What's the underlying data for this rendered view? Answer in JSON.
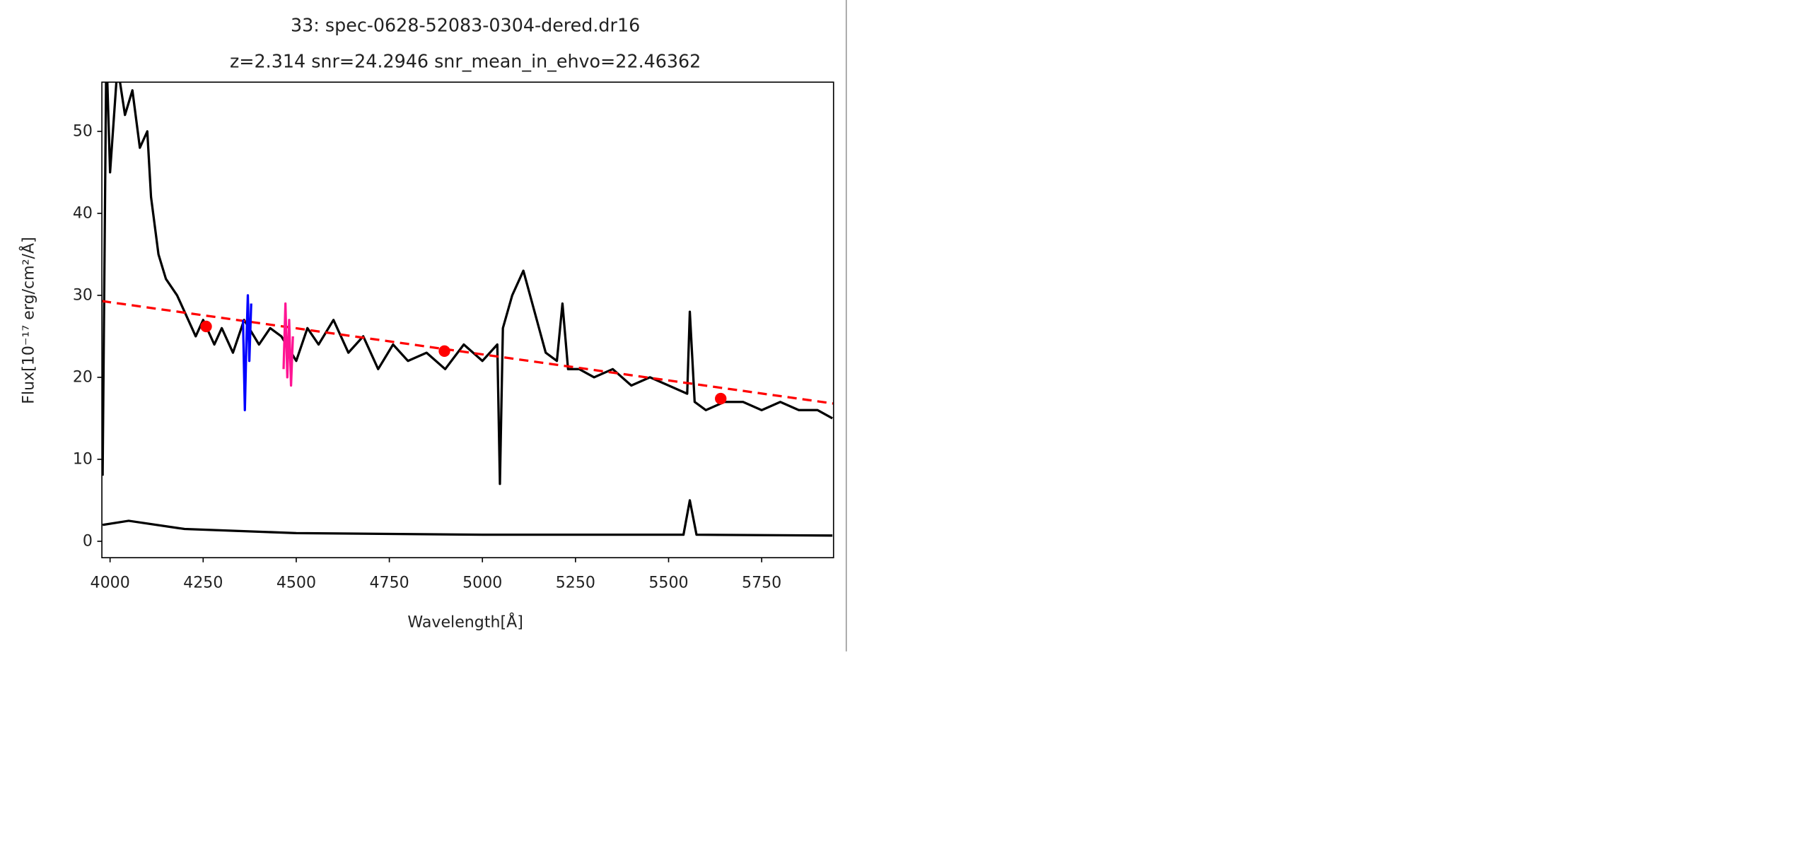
{
  "chart_data": {
    "type": "line",
    "title": "33: spec-0628-52083-0304-dered.dr16",
    "subtitle": "z=2.314 snr=24.2946 snr_mean_in_ehvo=22.46362",
    "xlabel": "Wavelength[Å]",
    "ylabel": "Flux[10⁻¹⁷ erg/cm²/Å]",
    "xlim": [
      3978,
      5943
    ],
    "ylim": [
      -2,
      56
    ],
    "xticks": [
      4000,
      4250,
      4500,
      4750,
      5000,
      5250,
      5500,
      5750
    ],
    "yticks": [
      0,
      10,
      20,
      30,
      40,
      50
    ],
    "series": [
      {
        "color": "#000000",
        "style": "solid",
        "x": [
          3980,
          3990,
          4000,
          4020,
          4040,
          4060,
          4080,
          4100,
          4110,
          4130,
          4150,
          4180,
          4200,
          4230,
          4250,
          4280,
          4300,
          4330,
          4360,
          4400,
          4430,
          4460,
          4500,
          4530,
          4560,
          4600,
          4640,
          4680,
          4720,
          4760,
          4800,
          4850,
          4900,
          4950,
          5000,
          5040,
          5047,
          5055,
          5080,
          5110,
          5140,
          5170,
          5200,
          5215,
          5230,
          5260,
          5300,
          5350,
          5400,
          5450,
          5500,
          5550,
          5557,
          5570,
          5600,
          5650,
          5700,
          5750,
          5800,
          5850,
          5900,
          5940
        ],
        "values": [
          8,
          60,
          45,
          58,
          52,
          55,
          48,
          50,
          42,
          35,
          32,
          30,
          28,
          25,
          27,
          24,
          26,
          23,
          27,
          24,
          26,
          25,
          22,
          26,
          24,
          27,
          23,
          25,
          21,
          24,
          22,
          23,
          21,
          24,
          22,
          24,
          7,
          26,
          30,
          33,
          28,
          23,
          22,
          29,
          21,
          21,
          20,
          21,
          19,
          20,
          19,
          18,
          28,
          17,
          16,
          17,
          17,
          16,
          17,
          16,
          16,
          15
        ]
      },
      {
        "color": "#000000",
        "style": "solid",
        "x": [
          3980,
          4050,
          4200,
          4500,
          5000,
          5540,
          5557,
          5575,
          5940
        ],
        "values": [
          2,
          2.5,
          1.5,
          1,
          0.8,
          0.8,
          5,
          0.8,
          0.7
        ]
      },
      {
        "color": "#ff0000",
        "style": "dashed",
        "x": [
          3978,
          5943
        ],
        "values": [
          29.3,
          16.8
        ]
      },
      {
        "color": "#ff0000",
        "style": "points",
        "x": [
          4258,
          4898,
          5640
        ],
        "values": [
          26.2,
          23.2,
          17.4
        ]
      },
      {
        "color": "#0000ff",
        "style": "solid",
        "x": [
          4357,
          4362,
          4366,
          4370,
          4374,
          4379
        ],
        "values": [
          27,
          16,
          24,
          30,
          22,
          29
        ]
      },
      {
        "color": "#ff1493",
        "style": "solid",
        "x": [
          4466,
          4471,
          4476,
          4481,
          4486,
          4491
        ],
        "values": [
          21,
          29,
          20,
          27,
          19,
          25
        ]
      }
    ]
  }
}
